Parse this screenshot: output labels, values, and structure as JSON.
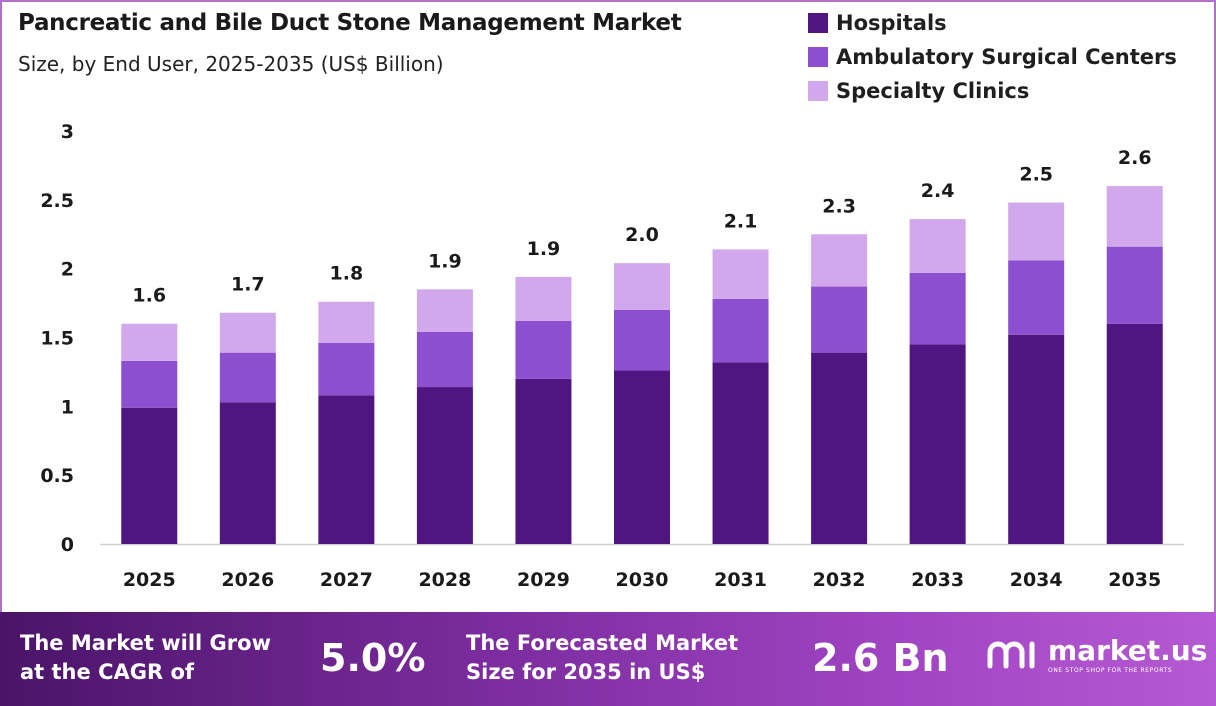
{
  "header": {
    "title": "Pancreatic and Bile Duct Stone Management Market",
    "subtitle": "Size, by End User, 2025-2035 (US$ Billion)"
  },
  "colors": {
    "hospitals": "#4f1580",
    "ambulatory": "#8b4fcf",
    "specialty": "#d2a8ec"
  },
  "chart_data": {
    "type": "bar",
    "stacked": true,
    "categories": [
      "2025",
      "2026",
      "2027",
      "2028",
      "2029",
      "2030",
      "2031",
      "2032",
      "2033",
      "2034",
      "2035"
    ],
    "series": [
      {
        "name": "Hospitals",
        "values": [
          0.99,
          1.03,
          1.08,
          1.14,
          1.2,
          1.26,
          1.32,
          1.39,
          1.45,
          1.52,
          1.6
        ]
      },
      {
        "name": "Ambulatory Surgical Centers",
        "values": [
          0.34,
          0.36,
          0.38,
          0.4,
          0.42,
          0.44,
          0.46,
          0.48,
          0.52,
          0.54,
          0.56
        ]
      },
      {
        "name": "Specialty Clinics",
        "values": [
          0.27,
          0.29,
          0.3,
          0.31,
          0.32,
          0.34,
          0.36,
          0.38,
          0.39,
          0.42,
          0.44
        ]
      }
    ],
    "totals": [
      "1.6",
      "1.7",
      "1.8",
      "1.9",
      "1.9",
      "2.0",
      "2.1",
      "2.3",
      "2.4",
      "2.5",
      "2.6"
    ],
    "yticks": [
      "0",
      "0.5",
      "1",
      "1.5",
      "2",
      "2.5",
      "3"
    ],
    "ylim": [
      0,
      3
    ],
    "grid": false,
    "legend_position": "top-right"
  },
  "footer": {
    "cagr_label_line1": "The Market will Grow",
    "cagr_label_line2": "at the CAGR of",
    "cagr_value": "5.0%",
    "forecast_label_line1": "The Forecasted Market",
    "forecast_label_line2": "Size for 2035 in US$",
    "forecast_value": "2.6 Bn",
    "logo_text": "market.us",
    "logo_tagline": "ONE STOP SHOP FOR THE REPORTS",
    "logo_icon": "market-us-logo-icon"
  }
}
